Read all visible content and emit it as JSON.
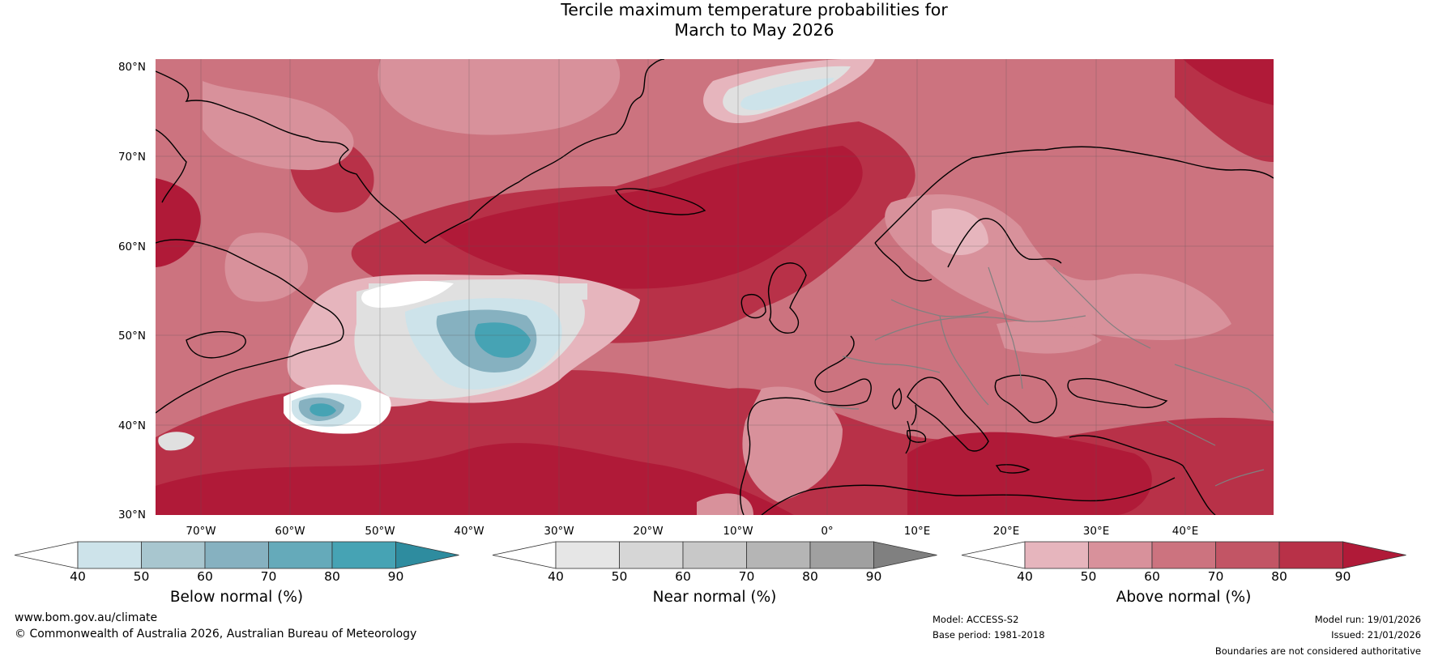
{
  "title_line1": "Tercile maximum temperature probabilities for",
  "title_line2": "March to May 2026",
  "lat_labels": [
    "80°N",
    "70°N",
    "60°N",
    "50°N",
    "40°N",
    "30°N"
  ],
  "lon_labels": [
    "70°W",
    "60°W",
    "50°W",
    "40°W",
    "30°W",
    "20°W",
    "10°W",
    "0°",
    "10°E",
    "20°E",
    "30°E",
    "40°E"
  ],
  "colorbars": [
    {
      "label": "Below normal (%)",
      "ticks": [
        "40",
        "50",
        "60",
        "70",
        "80",
        "90"
      ],
      "colors": [
        "#ffffff",
        "#cde3ea",
        "#a8c6cf",
        "#86b1c0",
        "#65aaba",
        "#46a3b4",
        "#2e8c9f"
      ]
    },
    {
      "label": "Near normal (%)",
      "ticks": [
        "40",
        "50",
        "60",
        "70",
        "80",
        "90"
      ],
      "colors": [
        "#ffffff",
        "#e6e6e6",
        "#d6d6d6",
        "#c8c8c8",
        "#b5b5b5",
        "#a0a0a0",
        "#808080"
      ]
    },
    {
      "label": "Above normal (%)",
      "ticks": [
        "40",
        "50",
        "60",
        "70",
        "80",
        "90"
      ],
      "colors": [
        "#ffffff",
        "#e6b5bd",
        "#d8919b",
        "#cc737f",
        "#c25565",
        "#b83148",
        "#b01a38"
      ]
    }
  ],
  "footer": {
    "website": "www.bom.gov.au/climate",
    "copyright": "© Commonwealth of Australia 2026, Australian Bureau of Meteorology",
    "model": "Model: ACCESS-S2",
    "base_period": "Base period: 1981-2018",
    "model_run": "Model run: 19/01/2026",
    "issued": "Issued: 21/01/2026",
    "disclaimer": "Boundaries are not considered authoritative"
  },
  "colors": {
    "above_60": "#cc737f",
    "above_70": "#c25565",
    "above_80": "#b83148",
    "above_90": "#b01a38",
    "above_50": "#d8919b",
    "above_40": "#e6b5bd",
    "near": "#e0e0e0",
    "below_50": "#cde3ea",
    "below_60": "#86b1c0",
    "below_70": "#46a3b4",
    "coast": "#000000",
    "border": "#808080"
  }
}
